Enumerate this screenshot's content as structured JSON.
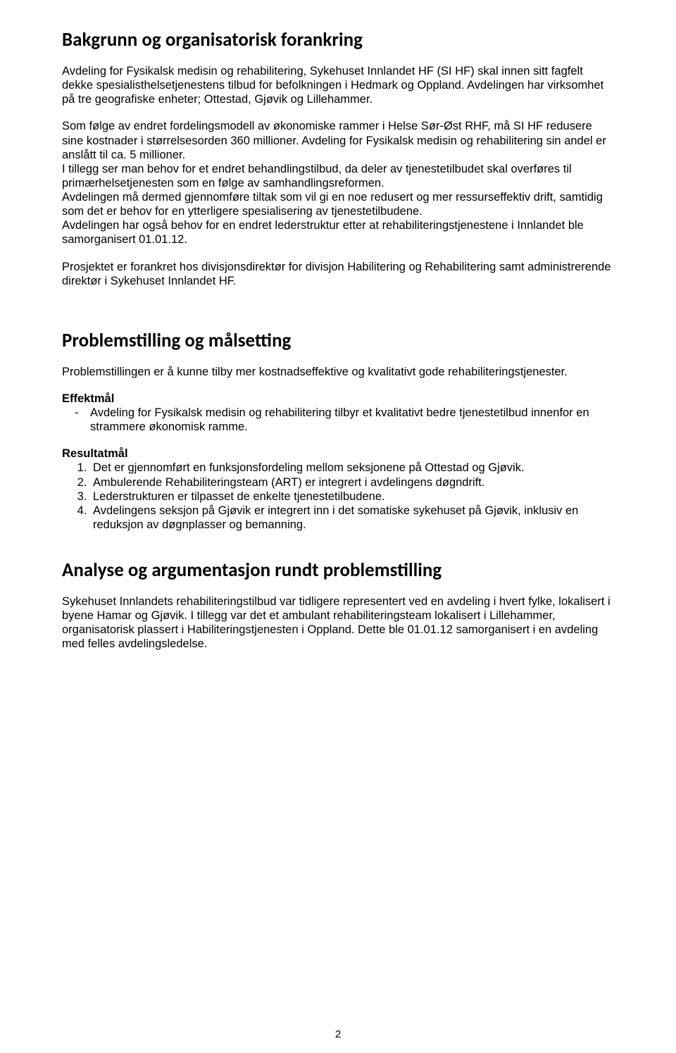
{
  "typography": {
    "heading_font": "Calibri",
    "body_font": "Arial",
    "heading_size_pt": 20,
    "body_size_pt": 12,
    "heading_weight": 700,
    "body_weight": 400,
    "text_color": "#000000",
    "background_color": "#ffffff"
  },
  "sections": {
    "s1": {
      "title": "Bakgrunn og organisatorisk forankring",
      "p1": "Avdeling for Fysikalsk medisin og rehabilitering, Sykehuset Innlandet HF (SI HF) skal innen sitt fagfelt dekke spesialisthelsetjenestens tilbud for befolkningen i Hedmark og Oppland. Avdelingen har virksomhet på tre geografiske enheter; Ottestad, Gjøvik og Lillehammer.",
      "p2": "Som følge av endret fordelingsmodell av økonomiske rammer i Helse Sør-Øst RHF, må SI HF redusere sine kostnader i størrelsesorden 360 millioner. Avdeling for Fysikalsk medisin og rehabilitering sin andel er anslått til ca. 5 millioner.\nI tillegg ser man behov for et endret behandlingstilbud, da deler av tjenestetilbudet skal overføres til primærhelsetjenesten som en følge av samhandlingsreformen.\nAvdelingen må dermed gjennomføre tiltak som vil gi en noe redusert og mer ressurseffektiv drift, samtidig som det er behov for en ytterligere spesialisering av tjenestetilbudene.\nAvdelingen har også behov for en endret lederstruktur etter at rehabiliteringstjenestene i Innlandet ble samorganisert 01.01.12.",
      "p3": "Prosjektet er forankret hos divisjonsdirektør for divisjon Habilitering og Rehabilitering samt administrerende direktør i Sykehuset Innlandet HF."
    },
    "s2": {
      "title": "Problemstilling og målsetting",
      "p1": "Problemstillingen er å kunne tilby mer kostnadseffektive og kvalitativt gode rehabiliteringstjenester.",
      "eff_label": "Effektmål",
      "eff_items": [
        "Avdeling for Fysikalsk medisin og rehabilitering tilbyr et kvalitativt bedre tjenestetilbud innenfor en strammere økonomisk ramme."
      ],
      "res_label": "Resultatmål",
      "res_items": [
        "Det er gjennomført en funksjonsfordeling mellom seksjonene på Ottestad og Gjøvik.",
        "Ambulerende Rehabiliteringsteam (ART) er integrert i avdelingens døgndrift.",
        "Lederstrukturen er tilpasset de enkelte tjenestetilbudene.",
        "Avdelingens seksjon på Gjøvik er integrert inn i det somatiske sykehuset på Gjøvik, inklusiv en reduksjon av døgnplasser og bemanning."
      ]
    },
    "s3": {
      "title": "Analyse og argumentasjon rundt problemstilling",
      "p1": "Sykehuset Innlandets rehabiliteringstilbud var tidligere representert ved en avdeling i hvert fylke, lokalisert i byene Hamar og Gjøvik. I tillegg var det et ambulant rehabiliteringsteam lokalisert i Lillehammer, organisatorisk plassert i Habiliteringstjenesten i Oppland. Dette ble 01.01.12 samorganisert i en avdeling med felles avdelingsledelse."
    }
  },
  "page_number": "2"
}
